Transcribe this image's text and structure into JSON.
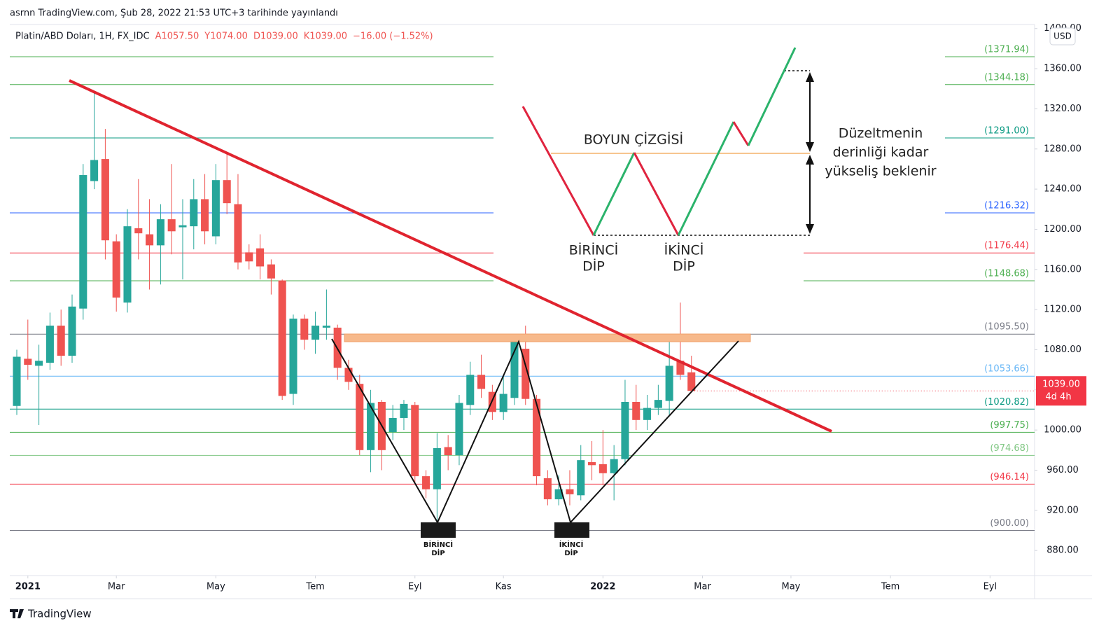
{
  "header": {
    "published": "asrnn TradingView.com, Şub 28, 2022 21:53 UTC+3 tarihinde yayınlandı",
    "symbol": "Platin/ABD Doları, 1H, FX_IDC",
    "ohlc": [
      "A1057.50",
      "Y1074.00",
      "D1039.00",
      "K1039.00"
    ],
    "change": "−16.00 (−1.52%)"
  },
  "chart_data": {
    "type": "candlestick",
    "x": [
      0,
      1,
      2,
      3,
      4,
      5,
      6,
      7,
      8,
      9,
      10,
      11,
      12,
      13,
      14,
      15,
      16,
      17,
      18,
      19,
      20,
      21,
      22,
      23,
      24,
      25,
      26,
      27,
      28,
      29,
      30,
      31,
      32,
      33,
      34,
      35,
      36,
      37,
      38,
      39,
      40,
      41,
      42,
      43,
      44,
      45,
      46,
      47,
      48,
      49,
      50,
      51,
      52,
      53,
      54,
      55,
      56,
      57,
      58,
      59,
      60,
      61
    ],
    "open": [
      1024,
      1071,
      1064,
      1067,
      1104,
      1074,
      1121,
      1248,
      1270,
      1188,
      1127,
      1201,
      1195,
      1184,
      1210,
      1202,
      1203,
      1230,
      1193,
      1249,
      1225,
      1177,
      1181,
      1165,
      1149,
      1036,
      1111,
      1090,
      1102,
      1102,
      1062,
      1046,
      980,
      1028,
      998,
      1012,
      1025,
      954,
      941,
      983,
      975,
      1025,
      1055,
      1038,
      1018,
      1032,
      1081,
      1031,
      952,
      931,
      941,
      935,
      968,
      966,
      957,
      971,
      1028,
      1010,
      1022,
      1029,
      1069,
      1057.5
    ],
    "high": [
      1080,
      1110,
      1085,
      1117,
      1120,
      1135,
      1265,
      1337,
      1300,
      1195,
      1220,
      1250,
      1230,
      1225,
      1265,
      1230,
      1250,
      1255,
      1265,
      1275,
      1255,
      1185,
      1195,
      1170,
      1150,
      1115,
      1115,
      1118,
      1140,
      1105,
      1070,
      1055,
      1040,
      1030,
      1025,
      1030,
      1028,
      960,
      997,
      995,
      1035,
      1068,
      1075,
      1045,
      1055,
      1095,
      1104,
      1035,
      960,
      955,
      960,
      985,
      989,
      1000,
      985,
      1050,
      1045,
      1035,
      1045,
      1095,
      1127,
      1074
    ],
    "low": [
      1015,
      1050,
      1005,
      1060,
      1064,
      1067,
      1110,
      1240,
      1170,
      1118,
      1117,
      1170,
      1140,
      1145,
      1175,
      1150,
      1180,
      1185,
      1185,
      1215,
      1160,
      1160,
      1150,
      1135,
      1030,
      1025,
      1080,
      1076,
      1090,
      1050,
      1040,
      975,
      958,
      960,
      990,
      1000,
      948,
      932,
      905,
      960,
      965,
      1015,
      1032,
      1010,
      1010,
      1025,
      1025,
      945,
      925,
      925,
      925,
      930,
      950,
      945,
      930,
      965,
      1000,
      1000,
      1015,
      1015,
      1050,
      1039
    ],
    "close": [
      1073,
      1065,
      1069,
      1104,
      1074,
      1123,
      1254,
      1269,
      1189,
      1132,
      1203,
      1196,
      1184,
      1210,
      1198,
      1204,
      1230,
      1198,
      1249,
      1226,
      1167,
      1168,
      1163,
      1151,
      1034,
      1111,
      1090,
      1104,
      1104,
      1062,
      1048,
      980,
      1027,
      980,
      1012,
      1026,
      954,
      941,
      982,
      975,
      1027,
      1055,
      1041,
      1018,
      1036,
      1088,
      1031,
      954,
      931,
      941,
      936,
      970,
      965,
      957,
      971,
      1028,
      1010,
      1022,
      1030,
      1064,
      1055,
      1039
    ],
    "up_color": "#26a69a",
    "down_color": "#ef5350",
    "xlim": [
      -0.633,
      92.03
    ],
    "xticks": [
      {
        "value": 1,
        "label": "2021"
      },
      {
        "value": 9,
        "label": "Mar"
      },
      {
        "value": 18,
        "label": "May"
      },
      {
        "value": 27,
        "label": "Tem"
      },
      {
        "value": 36,
        "label": "Eyl"
      },
      {
        "value": 44,
        "label": "Kas"
      },
      {
        "value": 53,
        "label": "2022"
      },
      {
        "value": 62,
        "label": "Mar"
      },
      {
        "value": 70,
        "label": "May"
      },
      {
        "value": 79,
        "label": "Tem"
      },
      {
        "value": 88,
        "label": "Eyl"
      }
    ],
    "ylim": [
      855,
      1404
    ],
    "yticks": [
      {
        "value": 880,
        "label": "880.00"
      },
      {
        "value": 920,
        "label": "920.00"
      },
      {
        "value": 960,
        "label": "960.00"
      },
      {
        "value": 1000,
        "label": "1000.00"
      },
      {
        "value": 1040,
        "label": "1040.00"
      },
      {
        "value": 1080,
        "label": "1080.00"
      },
      {
        "value": 1120,
        "label": "1120.00"
      },
      {
        "value": 1160,
        "label": "1160.00"
      },
      {
        "value": 1200,
        "label": "1200.00"
      },
      {
        "value": 1240,
        "label": "1240.00"
      },
      {
        "value": 1280,
        "label": "1280.00"
      },
      {
        "value": 1320,
        "label": "1320.00"
      },
      {
        "value": 1360,
        "label": "1360.00"
      },
      {
        "value": 1400,
        "label": "1400.00"
      }
    ],
    "y_unit": "USD",
    "levels": [
      {
        "value": 1371.94,
        "label": "(1371.94)",
        "color": "#4caf50"
      },
      {
        "value": 1344.18,
        "label": "(1344.18)",
        "color": "#4caf50"
      },
      {
        "value": 1291.0,
        "label": "(1291.00)",
        "color": "#089981"
      },
      {
        "value": 1216.32,
        "label": "(1216.32)",
        "color": "#2962ff"
      },
      {
        "value": 1176.44,
        "label": "(1176.44)",
        "color": "#f23645"
      },
      {
        "value": 1148.68,
        "label": "(1148.68)",
        "color": "#4caf50"
      },
      {
        "value": 1095.5,
        "label": "(1095.50)",
        "color": "#787b86"
      },
      {
        "value": 1053.66,
        "label": "(1053.66)",
        "color": "#64b5f6"
      },
      {
        "value": 1020.82,
        "label": "(1020.82)",
        "color": "#089981"
      },
      {
        "value": 997.75,
        "label": "(997.75)",
        "color": "#4caf50"
      },
      {
        "value": 974.68,
        "label": "(974.68)",
        "color": "#81c784"
      },
      {
        "value": 946.14,
        "label": "(946.14)",
        "color": "#f23645"
      },
      {
        "value": 900.0,
        "label": "(900.00)",
        "color": "#787b86"
      }
    ],
    "last_price": {
      "value": 1039,
      "label": "1039.00",
      "countdown": "4d 4h",
      "color": "#f23645"
    },
    "annotations": {
      "neckline": "BOYUN ÇİZGİSİ",
      "first_bottom": [
        "BİRİNCİ",
        "DİP"
      ],
      "second_bottom": [
        "İKİNCİ",
        "DİP"
      ],
      "note": [
        "Düzeltmenin",
        "derinliği kadar",
        "yükseliş beklenir"
      ]
    }
  },
  "footer": {
    "brand": "TradingView"
  }
}
